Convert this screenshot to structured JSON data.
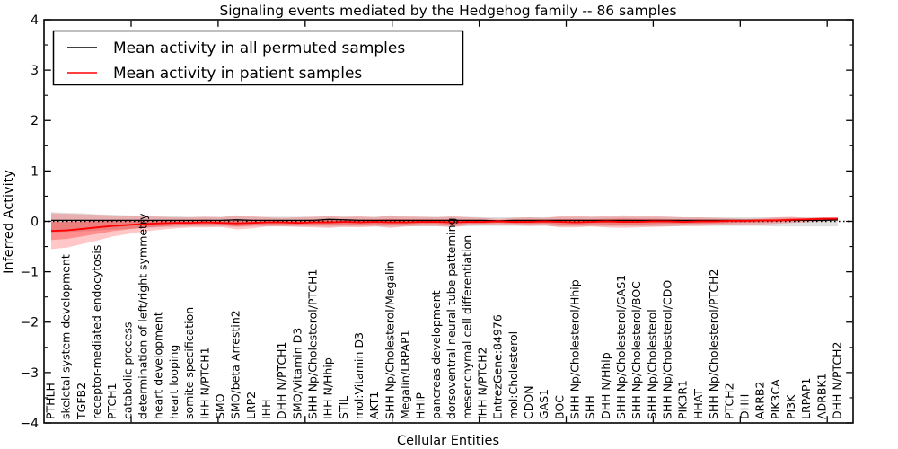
{
  "chart_data": {
    "type": "line",
    "title": "Signaling events mediated by the Hedgehog family -- 86 samples",
    "xlabel": "Cellular Entities",
    "ylabel": "Inferred Activity",
    "ylim": [
      -4,
      4
    ],
    "yticks": [
      "4",
      "3",
      "2",
      "1",
      "0",
      "−1",
      "−2",
      "−3",
      "−4"
    ],
    "ytick_values": [
      4,
      3,
      2,
      1,
      0,
      -1,
      -2,
      -3,
      -4
    ],
    "yminor_values": [
      3.5,
      2.5,
      1.5,
      0.5,
      -0.5,
      -1.5,
      -2.5,
      -3.5
    ],
    "grid": false,
    "legend_position": "upper left",
    "categories": [
      "PTHLH",
      "skeletal system development",
      "TGFB2",
      "receptor-mediated endocytosis",
      "PTCH1",
      "catabolic process",
      "determination of left/right symmetry",
      "heart development",
      "heart looping",
      "somite specification",
      "IHH N/PTCH1",
      "SMO",
      "SMO/beta Arrestin2",
      "LRP2",
      "IHH",
      "DHH N/PTCH1",
      "SMO/Vitamin D3",
      "SHH Np/Cholesterol/PTCH1",
      "IHH N/Hhip",
      "STIL",
      "mol:Vitamin D3",
      "AKT1",
      "SHH Np/Cholesterol/Megalin",
      "Megalin/LRPAP1",
      "HHIP",
      "pancreas development",
      "dorsoventral neural tube patterning",
      "mesenchymal cell differentiation",
      "IHH N/PTCH2",
      "EntrezGene:84976",
      "mol:Cholesterol",
      "CDON",
      "GAS1",
      "BOC",
      "SHH Np/Cholesterol/Hhip",
      "SHH",
      "DHH N/Hhip",
      "SHH Np/Cholesterol/GAS1",
      "SHH Np/Cholesterol/BOC",
      "SHH Np/Cholesterol",
      "SHH Np/Cholesterol/CDO",
      "PIK3R1",
      "HHAT",
      "SHH Np/Cholesterol/PTCH2",
      "PTCH2",
      "DHH",
      "ARRB2",
      "PIK3CA",
      "PI3K",
      "LRPAP1",
      "ADRBK1",
      "DHH N/PTCH2"
    ],
    "series": [
      {
        "name": "Mean activity in all permuted samples",
        "color": "#000000",
        "style": "solid",
        "values": [
          0.02,
          0.02,
          0.02,
          0.02,
          0.02,
          0.02,
          0.02,
          0.02,
          0.02,
          0.02,
          0.02,
          0.02,
          0.03,
          0.02,
          0.02,
          0.02,
          0.02,
          0.02,
          0.04,
          0.03,
          0.02,
          0.02,
          0.02,
          0.02,
          0.02,
          0.02,
          0.02,
          0.02,
          0.02,
          0.01,
          0.02,
          0.02,
          0.02,
          0.02,
          0.02,
          0.02,
          0.02,
          0.02,
          0.02,
          0.02,
          0.02,
          0.02,
          0.02,
          0.02,
          0.02,
          0.02,
          0.02,
          0.02,
          0.02,
          0.02,
          0.02,
          0.03
        ]
      },
      {
        "name": "Mean activity in patient samples",
        "color": "#ff0000",
        "style": "solid",
        "values": [
          -0.19,
          -0.18,
          -0.15,
          -0.12,
          -0.09,
          -0.07,
          -0.05,
          -0.04,
          -0.03,
          -0.03,
          -0.02,
          -0.03,
          -0.04,
          -0.03,
          -0.02,
          -0.02,
          -0.03,
          -0.02,
          -0.02,
          -0.01,
          -0.02,
          -0.01,
          -0.02,
          -0.02,
          -0.01,
          -0.01,
          -0.02,
          -0.01,
          -0.01,
          0.0,
          -0.01,
          -0.01,
          0.0,
          -0.01,
          -0.02,
          -0.01,
          0.0,
          -0.01,
          -0.01,
          0.0,
          0.0,
          -0.01,
          0.0,
          0.0,
          0.01,
          0.01,
          0.02,
          0.02,
          0.03,
          0.04,
          0.05,
          0.05
        ]
      }
    ],
    "bands": [
      {
        "name": "permuted samples range",
        "color": "#999999",
        "opacity": 0.3,
        "upper": [
          0.18,
          0.17,
          0.16,
          0.14,
          0.13,
          0.12,
          0.11,
          0.1,
          0.1,
          0.09,
          0.09,
          0.09,
          0.1,
          0.09,
          0.09,
          0.09,
          0.09,
          0.09,
          0.1,
          0.09,
          0.09,
          0.09,
          0.1,
          0.09,
          0.09,
          0.09,
          0.09,
          0.09,
          0.08,
          0.08,
          0.08,
          0.08,
          0.08,
          0.09,
          0.09,
          0.09,
          0.09,
          0.09,
          0.09,
          0.09,
          0.09,
          0.08,
          0.08,
          0.08,
          0.08,
          0.08,
          0.08,
          0.08,
          0.08,
          0.08,
          0.08,
          0.08
        ],
        "lower": [
          -0.22,
          -0.21,
          -0.2,
          -0.18,
          -0.16,
          -0.15,
          -0.13,
          -0.12,
          -0.11,
          -0.1,
          -0.1,
          -0.1,
          -0.11,
          -0.1,
          -0.1,
          -0.1,
          -0.1,
          -0.1,
          -0.11,
          -0.1,
          -0.1,
          -0.1,
          -0.11,
          -0.1,
          -0.1,
          -0.1,
          -0.1,
          -0.1,
          -0.09,
          -0.09,
          -0.09,
          -0.09,
          -0.09,
          -0.1,
          -0.1,
          -0.1,
          -0.1,
          -0.1,
          -0.1,
          -0.1,
          -0.1,
          -0.09,
          -0.09,
          -0.09,
          -0.09,
          -0.09,
          -0.09,
          -0.1,
          -0.1,
          -0.1,
          -0.1,
          -0.1
        ]
      },
      {
        "name": "patient samples range",
        "color": "#ff0000",
        "opacity": 0.22,
        "inner_opacity": 0.28,
        "upper": [
          0.16,
          0.15,
          0.14,
          0.13,
          0.12,
          0.11,
          0.1,
          0.09,
          0.08,
          0.08,
          0.09,
          0.08,
          0.12,
          0.1,
          0.08,
          0.07,
          0.08,
          0.09,
          0.1,
          0.09,
          0.1,
          0.08,
          0.12,
          0.1,
          0.09,
          0.08,
          0.1,
          0.08,
          0.07,
          0.05,
          0.07,
          0.08,
          0.07,
          0.1,
          0.11,
          0.09,
          0.1,
          0.12,
          0.11,
          0.1,
          0.09,
          0.08,
          0.08,
          0.07,
          0.06,
          0.05,
          0.06,
          0.08,
          0.09,
          0.07,
          0.08,
          0.08
        ],
        "lower": [
          -0.55,
          -0.52,
          -0.45,
          -0.38,
          -0.3,
          -0.25,
          -0.2,
          -0.17,
          -0.14,
          -0.12,
          -0.12,
          -0.11,
          -0.16,
          -0.14,
          -0.1,
          -0.1,
          -0.11,
          -0.12,
          -0.13,
          -0.11,
          -0.12,
          -0.1,
          -0.13,
          -0.1,
          -0.09,
          -0.09,
          -0.12,
          -0.08,
          -0.08,
          -0.06,
          -0.08,
          -0.09,
          -0.08,
          -0.12,
          -0.12,
          -0.1,
          -0.12,
          -0.13,
          -0.12,
          -0.11,
          -0.1,
          -0.09,
          -0.09,
          -0.08,
          -0.07,
          -0.06,
          -0.06,
          -0.05,
          -0.03,
          -0.02,
          0.0,
          0.01
        ]
      }
    ],
    "zero_line": {
      "value": 0,
      "style": "dotted",
      "color": "#000000"
    }
  }
}
